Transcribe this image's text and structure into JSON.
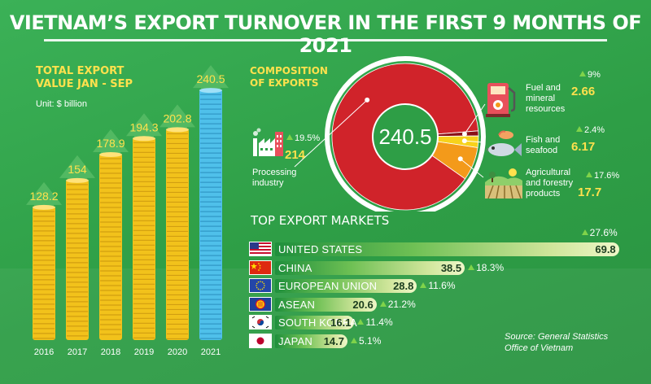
{
  "title": "VIETNAM’S EXPORT TURNOVER IN THE FIRST 9 MONTHS OF 2021",
  "colors": {
    "coin": "#f2c21b",
    "coin_2021": "#4fc0ea",
    "donut_main": "#d0232a",
    "accent_yellow": "#ffe14d"
  },
  "chart_data": [
    {
      "type": "bar",
      "title": "TOTAL EXPORT VALUE JAN - SEP",
      "title_lines": [
        "TOTAL EXPORT",
        "VALUE JAN - SEP"
      ],
      "unit": "Unit: $ billion",
      "categories": [
        "2016",
        "2017",
        "2018",
        "2019",
        "2020",
        "2021"
      ],
      "values": [
        128.2,
        154,
        178.9,
        194.3,
        202.8,
        240.5
      ],
      "value_labels": [
        "128.2",
        "154",
        "178.9",
        "194.3",
        "202.8",
        "240.5"
      ],
      "ylim": [
        0,
        250
      ],
      "grid": false
    },
    {
      "type": "pie",
      "title": "COMPOSITION OF EXPORTS",
      "title_lines": [
        "COMPOSITION",
        "OF EXPORTS"
      ],
      "total": 240.5,
      "total_label": "240.5",
      "slices": [
        {
          "name": "Processing industry",
          "lines": [
            "Processing",
            "industry"
          ],
          "value": 214,
          "value_label": "214",
          "change": "19.5%",
          "color": "#d0232a",
          "icon": "factory-icon"
        },
        {
          "name": "Fuel and mineral resources",
          "lines": [
            "Fuel and",
            "mineral",
            "resources"
          ],
          "value": 2.66,
          "value_label": "2.66",
          "change": "9%",
          "color": "#8a1016",
          "icon": "fuel-pump-icon"
        },
        {
          "name": "Fish and seafood",
          "lines": [
            "Fish and",
            "seafood"
          ],
          "value": 6.17,
          "value_label": "6.17",
          "change": "2.4%",
          "color": "#f7d21b",
          "icon": "fish-icon"
        },
        {
          "name": "Agricultural and forestry products",
          "lines": [
            "Agricultural",
            "and forestry",
            "products"
          ],
          "value": 17.7,
          "value_label": "17.7",
          "change": "17.6%",
          "color": "#f39a1a",
          "icon": "farm-field-icon"
        }
      ]
    },
    {
      "type": "bar",
      "orientation": "horizontal",
      "title": "TOP EXPORT MARKETS",
      "categories": [
        "UNITED STATES",
        "CHINA",
        "EUROPEAN UNION",
        "ASEAN",
        "SOUTH KOREA",
        "JAPAN"
      ],
      "values": [
        69.8,
        38.5,
        28.8,
        20.6,
        16.1,
        14.7
      ],
      "value_labels": [
        "69.8",
        "38.5",
        "28.8",
        "20.6",
        "16.1",
        "14.7"
      ],
      "changes": [
        "27.6%",
        "18.3%",
        "11.6%",
        "21.2%",
        "11.4%",
        "5.1%"
      ],
      "flags": [
        "us-flag-icon",
        "china-flag-icon",
        "eu-flag-icon",
        "asean-flag-icon",
        "south-korea-flag-icon",
        "japan-flag-icon"
      ],
      "xlim": [
        0,
        72
      ]
    }
  ],
  "source_lines": [
    "Source: General Statistics",
    "Office of Vietnam"
  ]
}
